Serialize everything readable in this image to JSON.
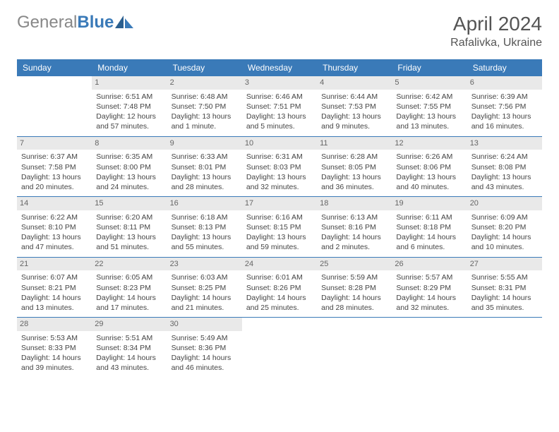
{
  "header": {
    "logo": {
      "part1": "General",
      "part2": "Blue"
    },
    "month_title": "April 2024",
    "location": "Rafalivka, Ukraine"
  },
  "style": {
    "header_bg": "#3a7ab8",
    "header_fg": "#ffffff",
    "daynum_bg": "#e9e9e9",
    "sep_color": "#3a7ab8"
  },
  "weekdays": [
    "Sunday",
    "Monday",
    "Tuesday",
    "Wednesday",
    "Thursday",
    "Friday",
    "Saturday"
  ],
  "weeks": [
    [
      {
        "empty": true
      },
      {
        "day": "1",
        "sunrise": "Sunrise: 6:51 AM",
        "sunset": "Sunset: 7:48 PM",
        "daylight": "Daylight: 12 hours and 57 minutes."
      },
      {
        "day": "2",
        "sunrise": "Sunrise: 6:48 AM",
        "sunset": "Sunset: 7:50 PM",
        "daylight": "Daylight: 13 hours and 1 minute."
      },
      {
        "day": "3",
        "sunrise": "Sunrise: 6:46 AM",
        "sunset": "Sunset: 7:51 PM",
        "daylight": "Daylight: 13 hours and 5 minutes."
      },
      {
        "day": "4",
        "sunrise": "Sunrise: 6:44 AM",
        "sunset": "Sunset: 7:53 PM",
        "daylight": "Daylight: 13 hours and 9 minutes."
      },
      {
        "day": "5",
        "sunrise": "Sunrise: 6:42 AM",
        "sunset": "Sunset: 7:55 PM",
        "daylight": "Daylight: 13 hours and 13 minutes."
      },
      {
        "day": "6",
        "sunrise": "Sunrise: 6:39 AM",
        "sunset": "Sunset: 7:56 PM",
        "daylight": "Daylight: 13 hours and 16 minutes."
      }
    ],
    [
      {
        "day": "7",
        "sunrise": "Sunrise: 6:37 AM",
        "sunset": "Sunset: 7:58 PM",
        "daylight": "Daylight: 13 hours and 20 minutes."
      },
      {
        "day": "8",
        "sunrise": "Sunrise: 6:35 AM",
        "sunset": "Sunset: 8:00 PM",
        "daylight": "Daylight: 13 hours and 24 minutes."
      },
      {
        "day": "9",
        "sunrise": "Sunrise: 6:33 AM",
        "sunset": "Sunset: 8:01 PM",
        "daylight": "Daylight: 13 hours and 28 minutes."
      },
      {
        "day": "10",
        "sunrise": "Sunrise: 6:31 AM",
        "sunset": "Sunset: 8:03 PM",
        "daylight": "Daylight: 13 hours and 32 minutes."
      },
      {
        "day": "11",
        "sunrise": "Sunrise: 6:28 AM",
        "sunset": "Sunset: 8:05 PM",
        "daylight": "Daylight: 13 hours and 36 minutes."
      },
      {
        "day": "12",
        "sunrise": "Sunrise: 6:26 AM",
        "sunset": "Sunset: 8:06 PM",
        "daylight": "Daylight: 13 hours and 40 minutes."
      },
      {
        "day": "13",
        "sunrise": "Sunrise: 6:24 AM",
        "sunset": "Sunset: 8:08 PM",
        "daylight": "Daylight: 13 hours and 43 minutes."
      }
    ],
    [
      {
        "day": "14",
        "sunrise": "Sunrise: 6:22 AM",
        "sunset": "Sunset: 8:10 PM",
        "daylight": "Daylight: 13 hours and 47 minutes."
      },
      {
        "day": "15",
        "sunrise": "Sunrise: 6:20 AM",
        "sunset": "Sunset: 8:11 PM",
        "daylight": "Daylight: 13 hours and 51 minutes."
      },
      {
        "day": "16",
        "sunrise": "Sunrise: 6:18 AM",
        "sunset": "Sunset: 8:13 PM",
        "daylight": "Daylight: 13 hours and 55 minutes."
      },
      {
        "day": "17",
        "sunrise": "Sunrise: 6:16 AM",
        "sunset": "Sunset: 8:15 PM",
        "daylight": "Daylight: 13 hours and 59 minutes."
      },
      {
        "day": "18",
        "sunrise": "Sunrise: 6:13 AM",
        "sunset": "Sunset: 8:16 PM",
        "daylight": "Daylight: 14 hours and 2 minutes."
      },
      {
        "day": "19",
        "sunrise": "Sunrise: 6:11 AM",
        "sunset": "Sunset: 8:18 PM",
        "daylight": "Daylight: 14 hours and 6 minutes."
      },
      {
        "day": "20",
        "sunrise": "Sunrise: 6:09 AM",
        "sunset": "Sunset: 8:20 PM",
        "daylight": "Daylight: 14 hours and 10 minutes."
      }
    ],
    [
      {
        "day": "21",
        "sunrise": "Sunrise: 6:07 AM",
        "sunset": "Sunset: 8:21 PM",
        "daylight": "Daylight: 14 hours and 13 minutes."
      },
      {
        "day": "22",
        "sunrise": "Sunrise: 6:05 AM",
        "sunset": "Sunset: 8:23 PM",
        "daylight": "Daylight: 14 hours and 17 minutes."
      },
      {
        "day": "23",
        "sunrise": "Sunrise: 6:03 AM",
        "sunset": "Sunset: 8:25 PM",
        "daylight": "Daylight: 14 hours and 21 minutes."
      },
      {
        "day": "24",
        "sunrise": "Sunrise: 6:01 AM",
        "sunset": "Sunset: 8:26 PM",
        "daylight": "Daylight: 14 hours and 25 minutes."
      },
      {
        "day": "25",
        "sunrise": "Sunrise: 5:59 AM",
        "sunset": "Sunset: 8:28 PM",
        "daylight": "Daylight: 14 hours and 28 minutes."
      },
      {
        "day": "26",
        "sunrise": "Sunrise: 5:57 AM",
        "sunset": "Sunset: 8:29 PM",
        "daylight": "Daylight: 14 hours and 32 minutes."
      },
      {
        "day": "27",
        "sunrise": "Sunrise: 5:55 AM",
        "sunset": "Sunset: 8:31 PM",
        "daylight": "Daylight: 14 hours and 35 minutes."
      }
    ],
    [
      {
        "day": "28",
        "sunrise": "Sunrise: 5:53 AM",
        "sunset": "Sunset: 8:33 PM",
        "daylight": "Daylight: 14 hours and 39 minutes."
      },
      {
        "day": "29",
        "sunrise": "Sunrise: 5:51 AM",
        "sunset": "Sunset: 8:34 PM",
        "daylight": "Daylight: 14 hours and 43 minutes."
      },
      {
        "day": "30",
        "sunrise": "Sunrise: 5:49 AM",
        "sunset": "Sunset: 8:36 PM",
        "daylight": "Daylight: 14 hours and 46 minutes."
      },
      {
        "empty": true
      },
      {
        "empty": true
      },
      {
        "empty": true
      },
      {
        "empty": true
      }
    ]
  ]
}
